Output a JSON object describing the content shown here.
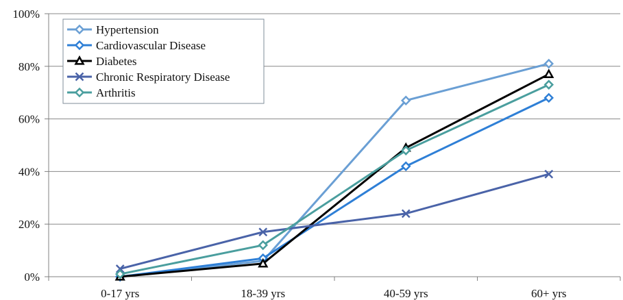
{
  "chart_data": {
    "type": "line",
    "categories": [
      "0-17 yrs",
      "18-39 yrs",
      "40-59 yrs",
      "60+ yrs"
    ],
    "y_ticks": [
      "0%",
      "20%",
      "40%",
      "60%",
      "80%",
      "100%"
    ],
    "ylim": [
      0,
      100
    ],
    "grid": true,
    "legend_position": "top-left",
    "series": [
      {
        "name": "Hypertension",
        "values": [
          0,
          6,
          67,
          81
        ],
        "color": "#6a9fd4",
        "marker": "diamond"
      },
      {
        "name": "Cardiovascular Disease",
        "values": [
          0,
          7,
          42,
          68
        ],
        "color": "#2e7fd6",
        "marker": "diamond"
      },
      {
        "name": "Diabetes",
        "values": [
          0,
          5,
          49,
          77
        ],
        "color": "#000000",
        "marker": "triangle"
      },
      {
        "name": "Chronic Respiratory Disease",
        "values": [
          3,
          17,
          24,
          39
        ],
        "color": "#4a63a8",
        "marker": "x"
      },
      {
        "name": "Arthritis",
        "values": [
          1,
          12,
          48,
          73
        ],
        "color": "#4a9e9e",
        "marker": "diamond"
      }
    ]
  }
}
